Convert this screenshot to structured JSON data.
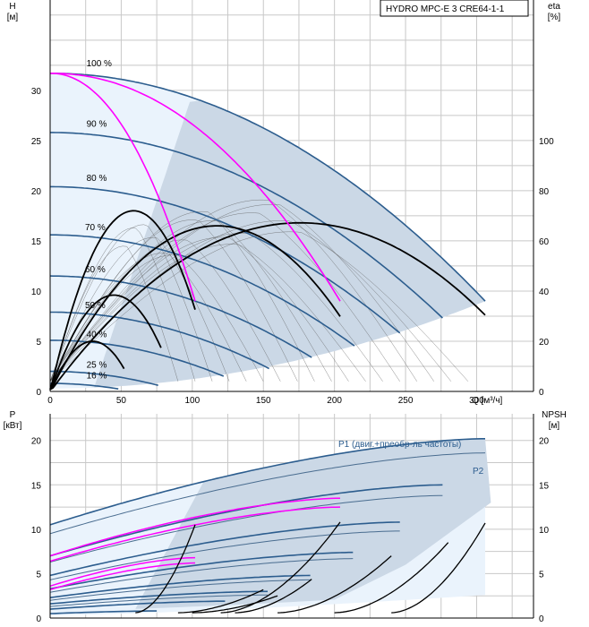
{
  "colors": {
    "light_region": "#eaf3fc",
    "dark_region": "#cbd8e6",
    "speed_curve": "#2c5d8e",
    "magenta": "#ff00ff",
    "black_curve": "#000000",
    "thin_curve": "#000000",
    "grid": "#c8c8c8"
  },
  "chart_data": [
    {
      "type": "line",
      "panel": "head",
      "title_box": "HYDRO MPC-E 3 CRE64-1-1",
      "ylabel_left": [
        "H",
        "[м]"
      ],
      "ylabel_right": [
        "eta",
        "[%]"
      ],
      "xlabel": "Q [м³/ч]",
      "xlim": [
        0,
        340
      ],
      "ylim_left": [
        0,
        39
      ],
      "ylim_right": [
        0,
        156
      ],
      "x_ticks": [
        0,
        50,
        100,
        150,
        200,
        250,
        300
      ],
      "y_ticks_left": [
        0,
        5,
        10,
        15,
        20,
        25,
        30
      ],
      "y_ticks_right": [
        0,
        20,
        40,
        60,
        80,
        100
      ],
      "speed_labels": [
        {
          "label": "100 %",
          "q": 18,
          "h": 32.2
        },
        {
          "label": "90 %",
          "q": 18,
          "h": 26.2
        },
        {
          "label": "80 %",
          "q": 18,
          "h": 20.8
        },
        {
          "label": "70 %",
          "q": 17,
          "h": 15.9
        },
        {
          "label": "60 %",
          "q": 17,
          "h": 11.7
        },
        {
          "label": "50 %",
          "q": 17,
          "h": 8.1
        },
        {
          "label": "40 %",
          "q": 18,
          "h": 5.2
        },
        {
          "label": "25 %",
          "q": 18,
          "h": 2.2
        },
        {
          "label": "16 %",
          "q": 18,
          "h": 1.1
        }
      ],
      "speed_curves": [
        {
          "speed": "100 %",
          "h0": 31.7,
          "qmax": 306
        },
        {
          "speed": "90 %",
          "h0": 25.8,
          "qmax": 276
        },
        {
          "speed": "80 %",
          "h0": 20.4,
          "qmax": 246
        },
        {
          "speed": "70 %",
          "h0": 15.6,
          "qmax": 215
        },
        {
          "speed": "60 %",
          "h0": 11.5,
          "qmax": 185
        },
        {
          "speed": "50 %",
          "h0": 7.9,
          "qmax": 154
        },
        {
          "speed": "40 %",
          "h0": 5.1,
          "qmax": 123
        },
        {
          "speed": "25 %",
          "h0": 2.0,
          "qmax": 77
        },
        {
          "speed": "16 %",
          "h0": 0.8,
          "qmax": 49
        }
      ],
      "head_system_curve": {
        "h_at_0": 0.3,
        "h_at_qmax": 9.0,
        "qmax": 306
      },
      "control_curves": [
        {
          "color": "magenta",
          "h0": 31.7,
          "q_end": 102,
          "h_end": 9.0
        },
        {
          "color": "magenta",
          "h0": 31.7,
          "q_end": 204,
          "h_end": 9.0
        }
      ],
      "efficiency_curves_black": [
        {
          "q_start": 0,
          "q_end": 52,
          "peak": 5.0
        },
        {
          "q_start": 0,
          "q_end": 78,
          "peak": 9.6
        },
        {
          "q_start": 0,
          "q_end": 102,
          "peak": 18.0
        },
        {
          "q_start": 0,
          "q_end": 204,
          "peak": 16.5
        },
        {
          "q_start": 0,
          "q_end": 306,
          "peak": 16.8
        }
      ]
    },
    {
      "type": "line",
      "panel": "power",
      "ylabel_left": [
        "P",
        "[кВт]"
      ],
      "ylabel_right": [
        "NPSH",
        "[м]"
      ],
      "xlim": [
        0,
        340
      ],
      "ylim_left": [
        0,
        23
      ],
      "y_ticks_left": [
        0,
        5,
        10,
        15,
        20
      ],
      "y_ticks_right": [
        0,
        5,
        10,
        15,
        20
      ],
      "series_labels": {
        "p1": "P1 (двиг.+преобр-ль частоты)",
        "p2": "P2"
      },
      "power_curves_p1": [
        {
          "p0": 10.5,
          "pend": 20.2,
          "qmax": 306
        },
        {
          "p0": 7.0,
          "pend": 15.0,
          "qmax": 276
        },
        {
          "p0": 4.8,
          "pend": 10.8,
          "qmax": 246
        },
        {
          "p0": 3.3,
          "pend": 7.4,
          "qmax": 215
        },
        {
          "p0": 2.3,
          "pend": 4.8,
          "qmax": 185
        },
        {
          "p0": 1.6,
          "pend": 3.0,
          "qmax": 154
        },
        {
          "p0": 1.0,
          "pend": 1.9,
          "qmax": 123
        },
        {
          "p0": 0.5,
          "pend": 0.8,
          "qmax": 77
        }
      ],
      "power_curves_p2": [
        {
          "p0": 9.5,
          "pend": 18.6,
          "qmax": 306
        },
        {
          "p0": 6.3,
          "pend": 13.8,
          "qmax": 276
        },
        {
          "p0": 4.3,
          "pend": 9.8,
          "qmax": 246
        },
        {
          "p0": 2.9,
          "pend": 6.7,
          "qmax": 215
        },
        {
          "p0": 2.0,
          "pend": 4.3,
          "qmax": 185
        },
        {
          "p0": 1.3,
          "pend": 2.6,
          "qmax": 154
        }
      ],
      "magenta_power": [
        {
          "p0": 7.0,
          "pend": 13.5,
          "qmax": 204
        },
        {
          "p0": 6.4,
          "pend": 12.5,
          "qmax": 204
        },
        {
          "p0": 3.6,
          "pend": 6.8,
          "qmax": 102
        },
        {
          "p0": 3.2,
          "pend": 6.2,
          "qmax": 102
        }
      ],
      "npsh_curves": [
        {
          "q_start": 60,
          "q_end": 102,
          "n_end": 10.5
        },
        {
          "q_start": 120,
          "q_end": 204,
          "n_end": 10.8
        },
        {
          "q_start": 160,
          "q_end": 240,
          "n_end": 7.0
        },
        {
          "q_start": 200,
          "q_end": 280,
          "n_end": 8.5
        },
        {
          "q_start": 240,
          "q_end": 306,
          "n_end": 10.7
        },
        {
          "q_start": 90,
          "q_end": 150,
          "n_end": 3.2
        },
        {
          "q_start": 130,
          "q_end": 185,
          "n_end": 4.5
        },
        {
          "q_start": 100,
          "q_end": 160,
          "n_end": 2.5
        }
      ]
    }
  ]
}
